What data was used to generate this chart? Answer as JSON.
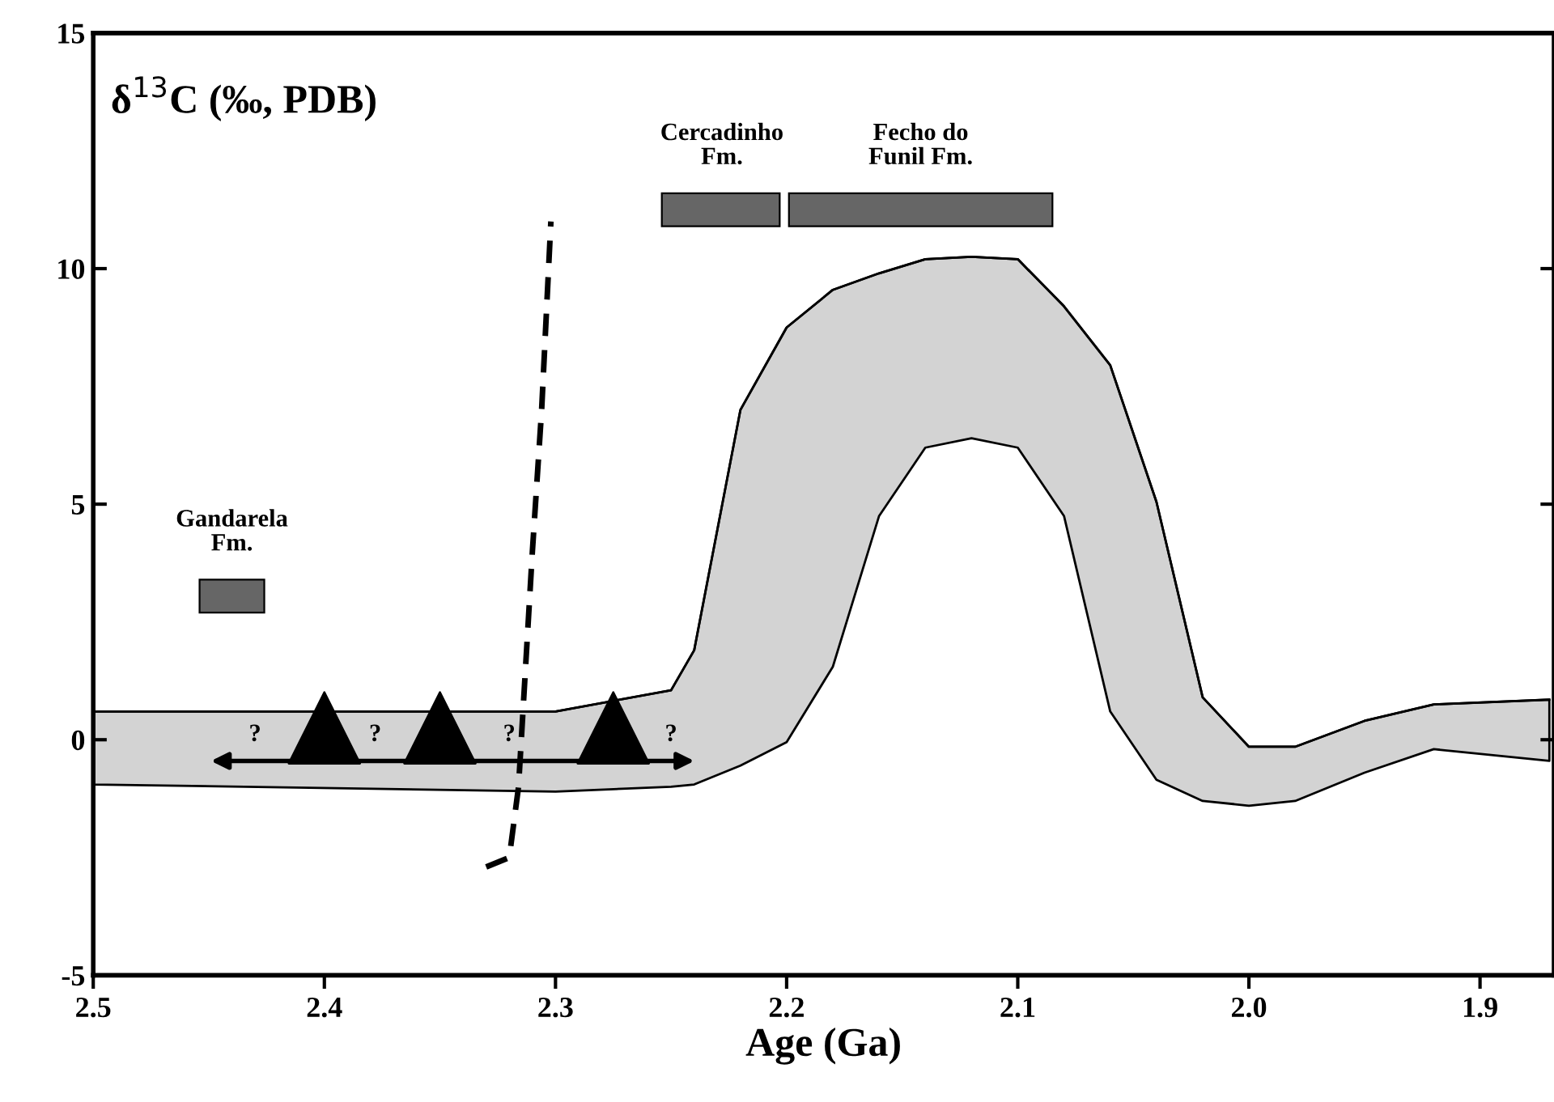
{
  "chart_data": {
    "type": "line",
    "xlabel": "Age (Ga)",
    "ylabel": "δ$^{13}$C (‰, PDB)",
    "xlim": [
      2.5,
      1.868
    ],
    "ylim": [
      -5,
      15
    ],
    "xticks": [
      2.5,
      2.4,
      2.3,
      2.2,
      2.1,
      {
        "value": 2.0,
        "label": "2.0"
      },
      1.9
    ],
    "yticks": [
      -5,
      0,
      5,
      10,
      15
    ],
    "series": [
      {
        "color": "#000000",
        "x": [
          2.5,
          2.3,
          2.25,
          2.24,
          2.22,
          2.2,
          2.18,
          2.16,
          2.14,
          2.12,
          2.1,
          2.08,
          2.06,
          2.04,
          2.02,
          2.0,
          1.98,
          1.95,
          1.92,
          1.87
        ],
        "values": [
          0.6,
          0.6,
          1.05,
          1.9,
          7.0,
          8.75,
          9.55,
          9.9,
          10.2,
          10.25,
          10.2,
          9.2,
          7.95,
          5.05,
          0.9,
          -0.15,
          -0.15,
          0.4,
          0.75,
          0.85
        ],
        "upper": [
          0.6,
          0.6,
          1.05,
          1.9,
          7.0,
          8.75,
          9.55,
          9.9,
          10.2,
          10.25,
          10.2,
          9.2,
          7.95,
          5.05,
          0.9,
          -0.15,
          -0.15,
          0.4,
          0.75,
          0.85
        ],
        "lower": [
          -0.95,
          -1.1,
          -1.0,
          -0.95,
          -0.55,
          -0.05,
          1.55,
          4.75,
          6.2,
          6.4,
          6.2,
          4.75,
          0.6,
          -0.85,
          -1.3,
          -1.4,
          -1.3,
          -0.7,
          -0.2,
          -0.45
        ]
      },
      {
        "type": "line",
        "color": "#000000",
        "line_style": "dashed",
        "x": [
          2.33,
          2.32,
          2.316,
          2.313,
          2.31,
          2.306,
          2.302
        ],
        "values": [
          -2.7,
          -2.5,
          -1.0,
          1.5,
          4.0,
          7.0,
          11.0
        ]
      },
      {
        "type": "scatter",
        "marker": "triangle",
        "color": "#000000",
        "x": [
          2.4,
          2.35,
          2.275
        ],
        "values": [
          0.25,
          0.25,
          0.25
        ]
      }
    ],
    "annotations": [
      "Gandarela\nFm.",
      "Cercadinho\nFm.",
      "Fecho do\nFunil Fm.",
      "?",
      "?",
      "?",
      "?"
    ]
  }
}
